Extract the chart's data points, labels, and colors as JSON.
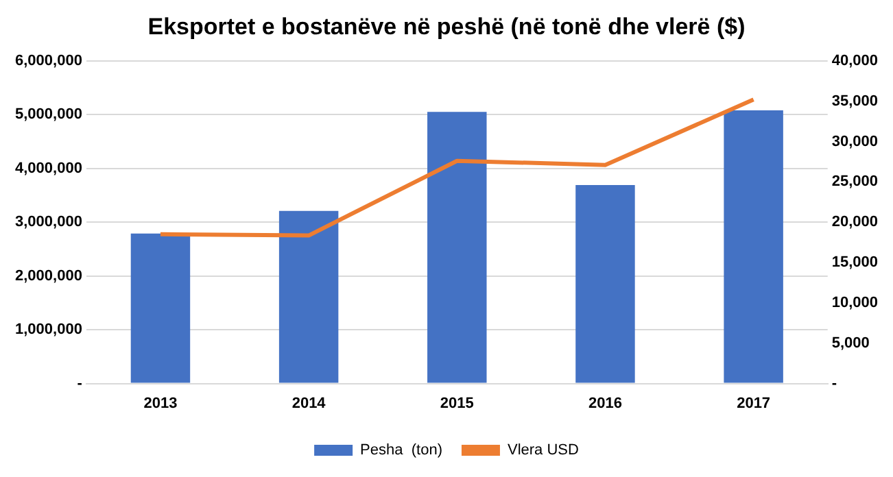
{
  "chart_data": {
    "type": "bar",
    "title": "Eksportet e bostanëve në peshë (në tonë dhe vlerë ($)",
    "categories": [
      "2013",
      "2014",
      "2015",
      "2016",
      "2017"
    ],
    "series": [
      {
        "name": "Pesha  (ton)",
        "color": "#4472c4",
        "values": [
          2790000,
          3210000,
          5050000,
          3690000,
          5080000
        ]
      },
      {
        "name": "Vlera USD",
        "type": "line",
        "axis": "y2",
        "color": "#ed7d31",
        "values": [
          18500,
          18350,
          27600,
          27100,
          35200
        ]
      }
    ],
    "ylim": [
      0,
      6000000
    ],
    "yticks": [
      {
        "value": 0,
        "label": "-"
      },
      {
        "value": 1000000,
        "label": "1,000,000"
      },
      {
        "value": 2000000,
        "label": "2,000,000"
      },
      {
        "value": 3000000,
        "label": "3,000,000"
      },
      {
        "value": 4000000,
        "label": "4,000,000"
      },
      {
        "value": 5000000,
        "label": "5,000,000"
      },
      {
        "value": 6000000,
        "label": "6,000,000"
      }
    ],
    "y2lim": [
      0,
      40000
    ],
    "y2ticks": [
      {
        "value": 0,
        "label": "-"
      },
      {
        "value": 5000,
        "label": "5,000"
      },
      {
        "value": 10000,
        "label": "10,000"
      },
      {
        "value": 15000,
        "label": "15,000"
      },
      {
        "value": 20000,
        "label": "20,000"
      },
      {
        "value": 25000,
        "label": "25,000"
      },
      {
        "value": 30000,
        "label": "30,000"
      },
      {
        "value": 35000,
        "label": "35,000"
      },
      {
        "value": 40000,
        "label": "40,000"
      }
    ],
    "grid": "y",
    "legend": "bottom",
    "marker": "none"
  }
}
